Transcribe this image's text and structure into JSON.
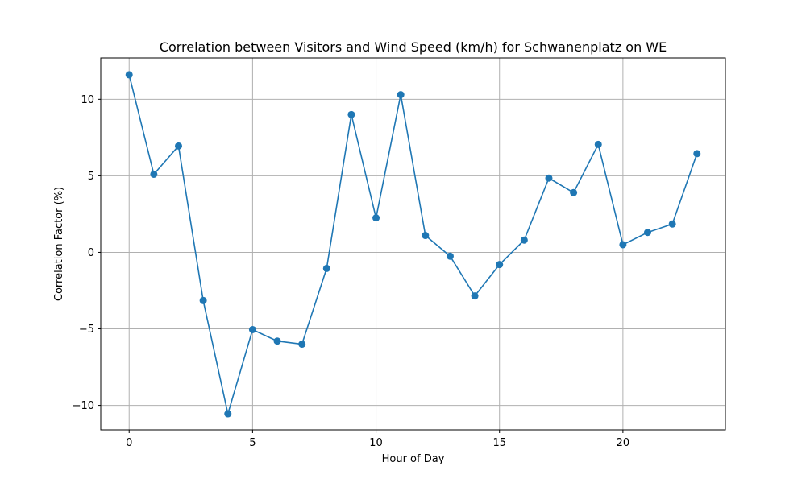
{
  "chart_data": {
    "type": "line",
    "title": "Correlation between Visitors and Wind Speed (km/h) for Schwanenplatz on WE",
    "xlabel": "Hour of Day",
    "ylabel": "Correlation Factor (%)",
    "xlim": [
      -1.15,
      24.15
    ],
    "ylim": [
      -11.6,
      12.7
    ],
    "xticks": [
      0,
      5,
      10,
      15,
      20
    ],
    "yticks": [
      -10,
      -5,
      0,
      5,
      10
    ],
    "xtick_labels": [
      "0",
      "5",
      "10",
      "15",
      "20"
    ],
    "ytick_labels": [
      "−10",
      "−5",
      "0",
      "5",
      "10"
    ],
    "grid": true,
    "x": [
      0,
      1,
      2,
      3,
      4,
      5,
      6,
      7,
      8,
      9,
      10,
      11,
      12,
      13,
      14,
      15,
      16,
      17,
      18,
      19,
      20,
      21,
      22,
      23
    ],
    "series": [
      {
        "color": "#1f77b4",
        "marker": "circle",
        "values": [
          11.6,
          5.1,
          6.95,
          -3.15,
          -10.55,
          -5.05,
          -5.8,
          -6.0,
          -1.05,
          9.0,
          2.25,
          10.3,
          1.1,
          -0.25,
          -2.85,
          -0.8,
          0.8,
          4.85,
          3.9,
          7.05,
          0.5,
          1.3,
          1.85,
          6.45
        ]
      }
    ]
  }
}
